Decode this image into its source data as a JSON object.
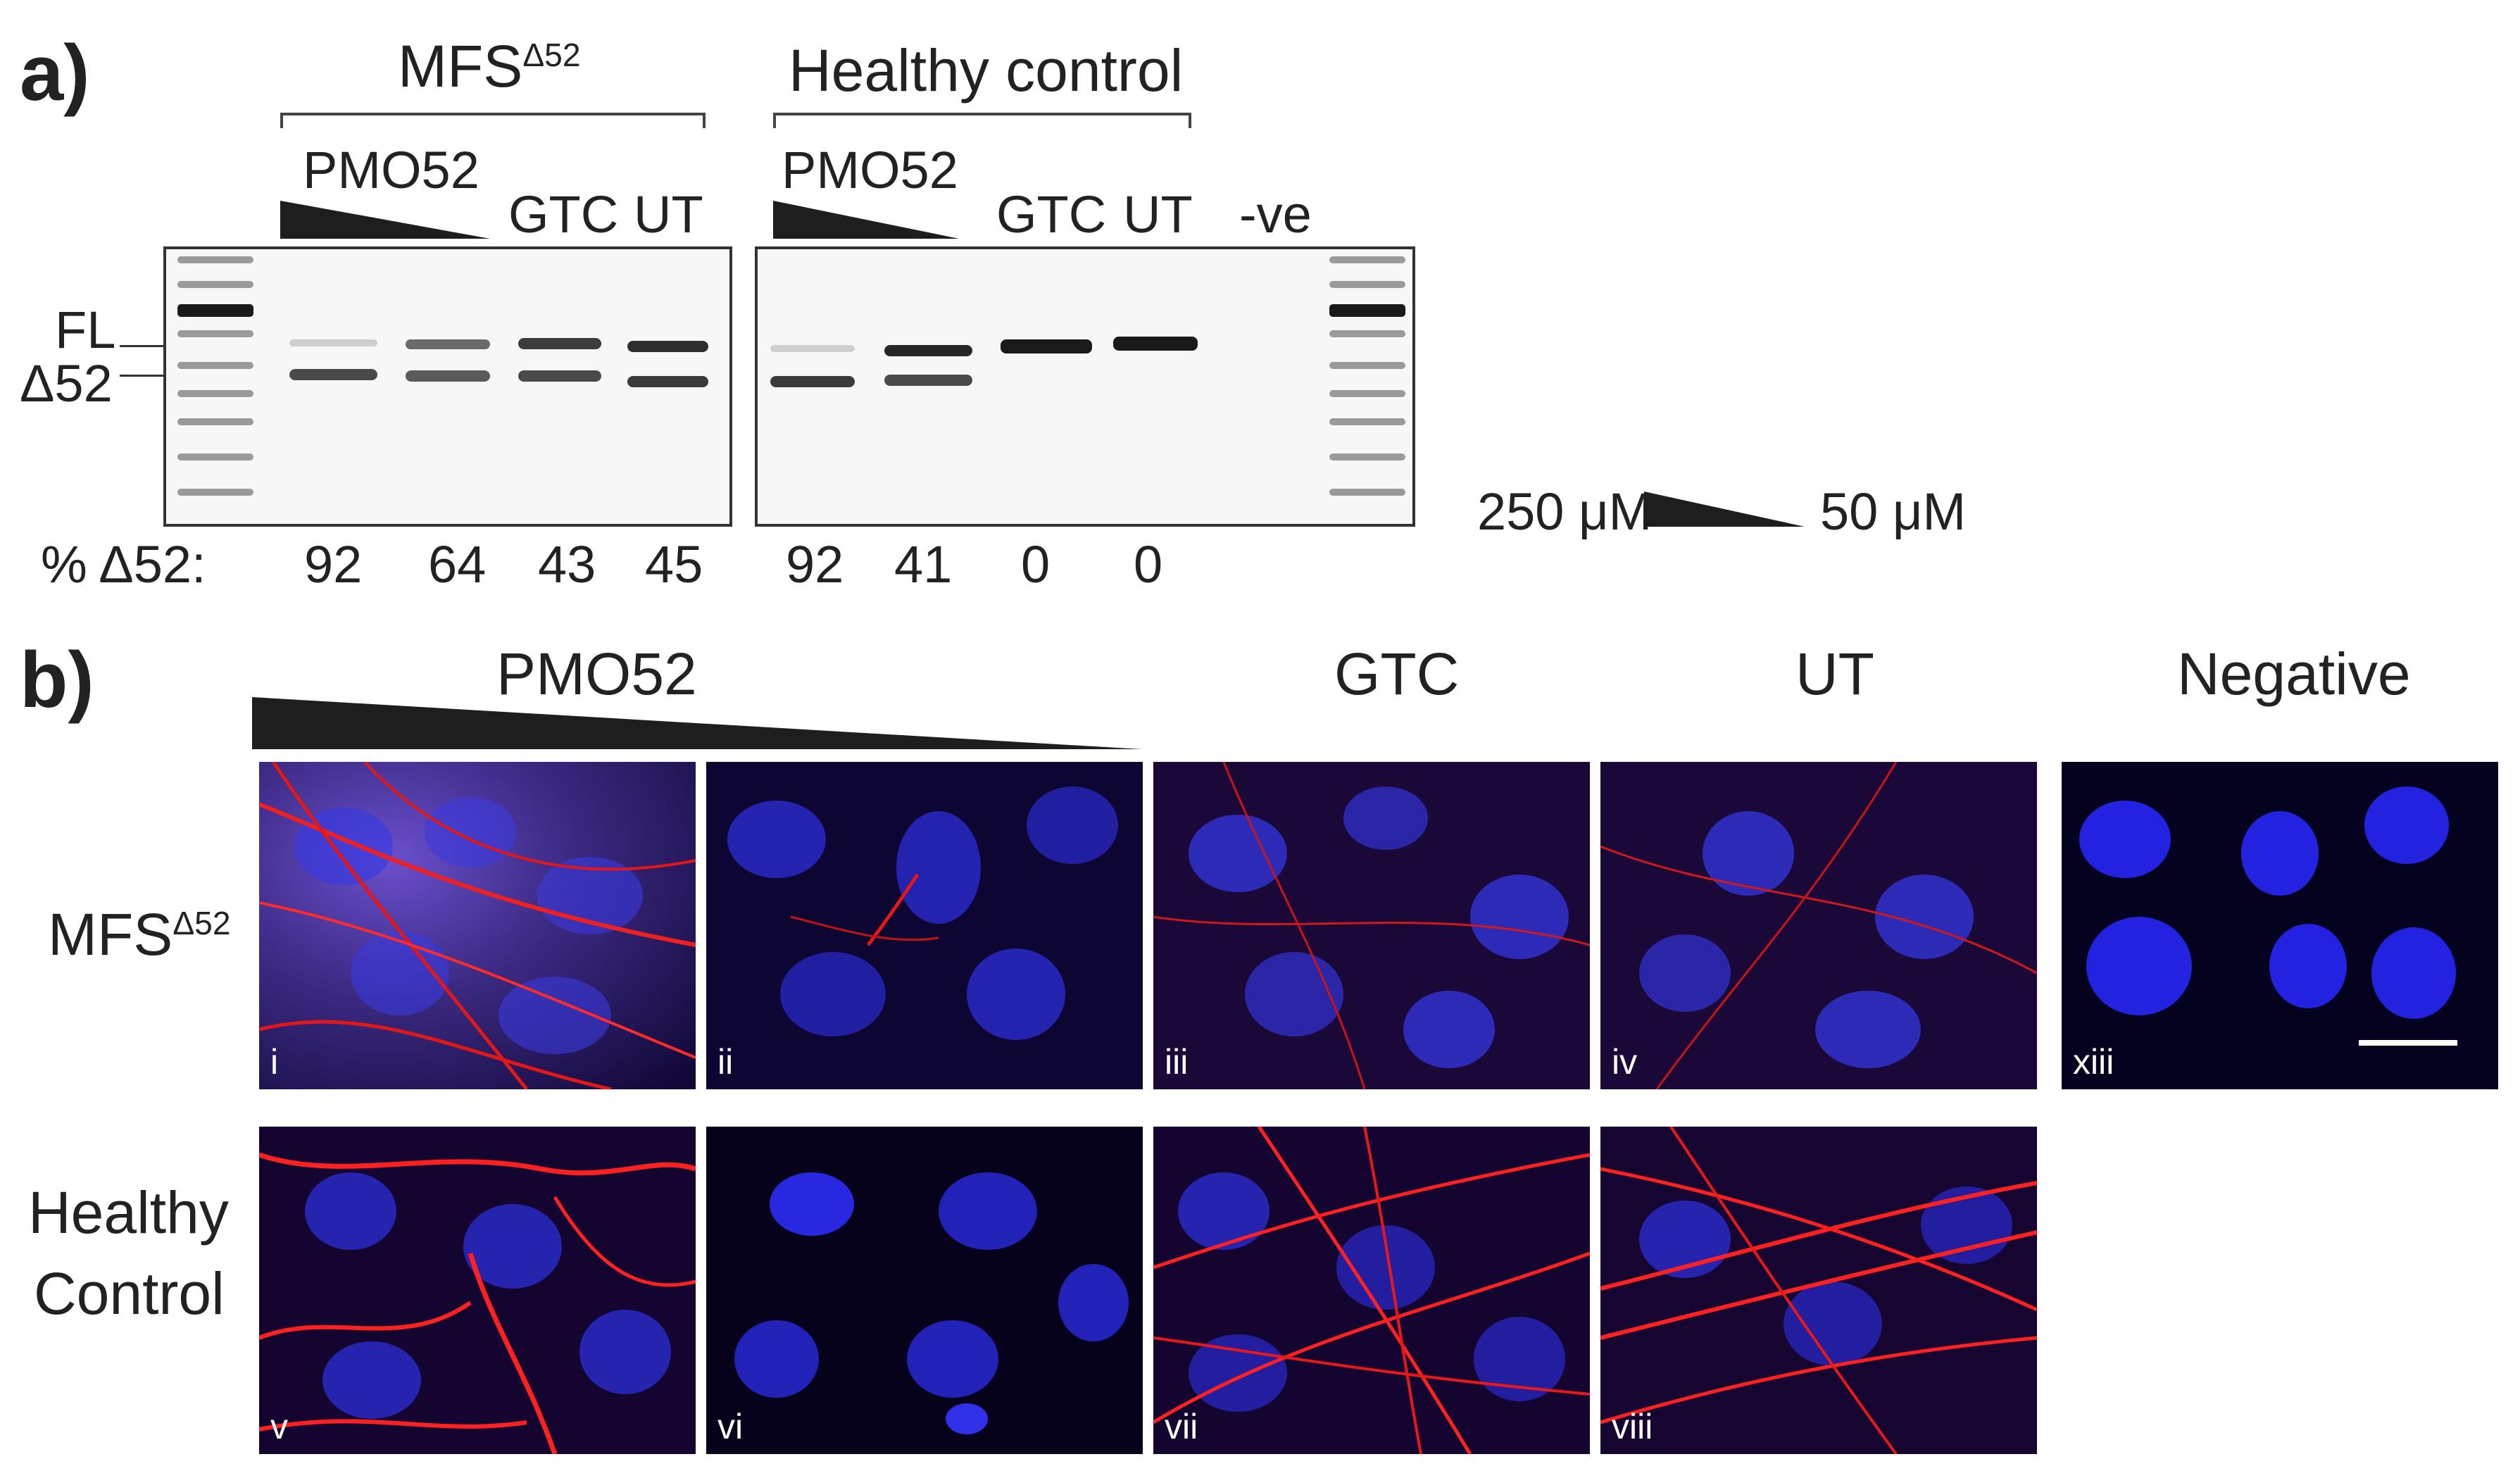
{
  "panel_a": {
    "letter": "a)",
    "groups": [
      {
        "title": "MFS",
        "sup": "Δ52",
        "treatment": "PMO52",
        "gtc": "GTC",
        "ut": "UT"
      },
      {
        "title": "Healthy control",
        "treatment": "PMO52",
        "gtc": "GTC",
        "ut": "UT"
      }
    ],
    "neg": "-ve",
    "band_labels": {
      "fl": "FL",
      "d52": "Δ52"
    },
    "percent_label": "% Δ52:",
    "percent_values": [
      "92",
      "64",
      "43",
      "45",
      "92",
      "41",
      "0",
      "0"
    ],
    "conc_high": "250 μM",
    "conc_low": "50 μM"
  },
  "panel_b": {
    "letter": "b)",
    "columns": [
      "PMO52",
      "GTC",
      "UT",
      "Negative"
    ],
    "rows": [
      {
        "label": "MFS",
        "sup": "Δ52"
      },
      {
        "label_line1": "Healthy",
        "label_line2": "Control"
      }
    ],
    "image_labels": [
      "i",
      "ii",
      "iii",
      "iv",
      "xiii",
      "v",
      "vi",
      "vii",
      "viii"
    ]
  },
  "colors": {
    "nuclei": "#2a2ad8",
    "fibrillin": "#e21818",
    "background": "#0b0530"
  }
}
